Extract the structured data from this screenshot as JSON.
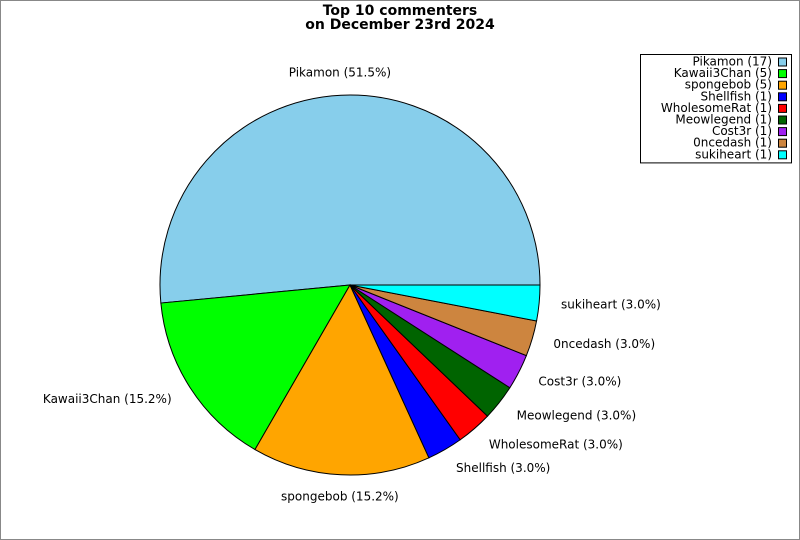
{
  "chart_data": {
    "type": "pie",
    "title": "Top 10 commenters",
    "subtitle": "on December 23rd 2024",
    "categories": [
      "Pikamon",
      "Kawaii3Chan",
      "spongebob",
      "Shellfish",
      "WholesomeRat",
      "Meowlegend",
      "Cost3r",
      "0ncedash",
      "sukiheart"
    ],
    "values": [
      17,
      5,
      5,
      1,
      1,
      1,
      1,
      1,
      1
    ],
    "slice_labels": [
      "Pikamon (51.5%)",
      "Kawaii3Chan (15.2%)",
      "spongebob (15.2%)",
      "Shellfish (3.0%)",
      "WholesomeRat (3.0%)",
      "Meowlegend (3.0%)",
      "Cost3r (3.0%)",
      "0ncedash (3.0%)",
      "sukiheart (3.0%)"
    ],
    "legend_labels": [
      "Pikamon (17)",
      "Kawaii3Chan (5)",
      "spongebob (5)",
      "Shellfish (1)",
      "WholesomeRat (1)",
      "Meowlegend (1)",
      "Cost3r (1)",
      "0ncedash (1)",
      "sukiheart (1)"
    ],
    "colors": [
      "#87ceeb",
      "#00ff00",
      "#ffa500",
      "#0000ff",
      "#ff0000",
      "#006400",
      "#a020f0",
      "#cd853f",
      "#00ffff"
    ],
    "legend": "upper right"
  }
}
